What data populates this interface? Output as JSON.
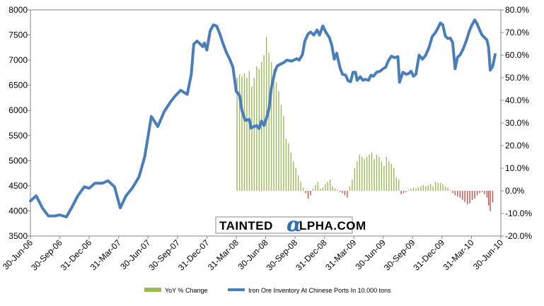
{
  "chart_data": {
    "type": "line",
    "title": "",
    "xlabel": "",
    "ylabel": "",
    "y_left_lim": [
      3500,
      8000
    ],
    "y_left_ticks": [
      "3500",
      "4000",
      "4500",
      "5000",
      "5500",
      "6000",
      "6500",
      "7000",
      "7500",
      "8000"
    ],
    "y_right_lim": [
      -20,
      80
    ],
    "y_right_ticks": [
      "-20.0%",
      "-10.0%",
      "0.0%",
      "10.0%",
      "20.0%",
      "30.0%",
      "40.0%",
      "50.0%",
      "60.0%",
      "70.0%",
      "80.0%"
    ],
    "x_tick_labels": [
      "30-Jun-06",
      "30-Sep-06",
      "31-Dec-06",
      "31-Mar-07",
      "30-Jun-07",
      "30-Sep-07",
      "31-Dec-07",
      "31-Mar-08",
      "30-Jun-08",
      "30-Sep-08",
      "31-Dec-08",
      "31-Mar-09",
      "30-Jun-09",
      "30-Sep-09",
      "31-Dec-09",
      "31-Mar-10",
      "30-Jun-10"
    ],
    "legend_position": "bottom",
    "grid": false,
    "watermark": {
      "prefix": "TAINTED",
      "alpha": "α",
      "suffix": "LPHA.COM"
    },
    "series": [
      {
        "name": "Iron Ore Inventory At Chinese Ports In 10.000 tons",
        "axis": "left",
        "style": "line",
        "color": "#4a7ebb",
        "points": [
          [
            0.0,
            4200
          ],
          [
            0.7,
            4300
          ],
          [
            1.5,
            4050
          ],
          [
            2.2,
            3900
          ],
          [
            3.0,
            3900
          ],
          [
            3.6,
            3920
          ],
          [
            4.4,
            3880
          ],
          [
            5.0,
            4050
          ],
          [
            5.8,
            4300
          ],
          [
            6.6,
            4480
          ],
          [
            7.2,
            4450
          ],
          [
            7.9,
            4550
          ],
          [
            8.8,
            4550
          ],
          [
            9.5,
            4600
          ],
          [
            10.3,
            4480
          ],
          [
            11.0,
            4060
          ],
          [
            11.7,
            4300
          ],
          [
            12.5,
            4460
          ],
          [
            13.3,
            4680
          ],
          [
            14.0,
            5080
          ],
          [
            14.8,
            5880
          ],
          [
            15.6,
            5680
          ],
          [
            16.4,
            5980
          ],
          [
            17.2,
            6180
          ],
          [
            17.8,
            6300
          ],
          [
            18.4,
            6400
          ],
          [
            19.2,
            6320
          ],
          [
            19.7,
            6720
          ],
          [
            20.0,
            7320
          ],
          [
            20.4,
            7380
          ],
          [
            20.8,
            7320
          ],
          [
            21.1,
            7270
          ],
          [
            21.3,
            7340
          ],
          [
            21.6,
            7200
          ],
          [
            22.0,
            7580
          ],
          [
            22.4,
            7700
          ],
          [
            22.8,
            7680
          ],
          [
            23.2,
            7520
          ],
          [
            23.6,
            7320
          ],
          [
            24.0,
            7150
          ],
          [
            24.4,
            7020
          ],
          [
            24.8,
            6860
          ],
          [
            25.2,
            6380
          ],
          [
            25.6,
            6300
          ],
          [
            25.9,
            6000
          ],
          [
            26.3,
            5800
          ],
          [
            26.8,
            5820
          ],
          [
            27.0,
            5650
          ],
          [
            27.4,
            5680
          ],
          [
            27.7,
            5700
          ],
          [
            28.0,
            5640
          ],
          [
            28.3,
            5790
          ],
          [
            28.6,
            5700
          ],
          [
            28.9,
            5850
          ],
          [
            29.2,
            6020
          ],
          [
            29.5,
            6450
          ],
          [
            29.9,
            6750
          ],
          [
            30.2,
            6880
          ],
          [
            30.6,
            6920
          ],
          [
            31.0,
            6950
          ],
          [
            31.4,
            7000
          ],
          [
            32.0,
            6980
          ],
          [
            32.6,
            7030
          ],
          [
            32.9,
            7000
          ],
          [
            33.3,
            7110
          ],
          [
            33.6,
            7380
          ],
          [
            34.0,
            7520
          ],
          [
            34.3,
            7560
          ],
          [
            34.7,
            7500
          ],
          [
            35.1,
            7600
          ],
          [
            35.4,
            7500
          ],
          [
            35.8,
            7680
          ],
          [
            36.2,
            7550
          ],
          [
            36.6,
            7450
          ],
          [
            36.9,
            7300
          ],
          [
            37.2,
            7020
          ],
          [
            37.5,
            7140
          ],
          [
            37.9,
            6850
          ],
          [
            38.2,
            6720
          ],
          [
            38.6,
            6700
          ],
          [
            38.9,
            6590
          ],
          [
            39.2,
            6570
          ],
          [
            39.5,
            6760
          ],
          [
            39.8,
            6760
          ],
          [
            40.0,
            6600
          ],
          [
            40.4,
            6670
          ],
          [
            40.7,
            6600
          ],
          [
            41.0,
            6620
          ],
          [
            41.4,
            6600
          ],
          [
            41.7,
            6700
          ],
          [
            42.0,
            6680
          ],
          [
            42.4,
            6760
          ],
          [
            42.8,
            6780
          ],
          [
            43.2,
            6830
          ],
          [
            43.5,
            6860
          ],
          [
            43.8,
            6980
          ],
          [
            44.2,
            7080
          ],
          [
            44.6,
            7050
          ],
          [
            45.0,
            7070
          ],
          [
            45.2,
            6560
          ],
          [
            45.6,
            6760
          ],
          [
            46.0,
            6720
          ],
          [
            46.3,
            6730
          ],
          [
            46.6,
            6780
          ],
          [
            46.9,
            6680
          ],
          [
            47.2,
            6720
          ],
          [
            47.6,
            7100
          ],
          [
            48.0,
            7020
          ],
          [
            48.4,
            7100
          ],
          [
            48.8,
            7250
          ],
          [
            49.2,
            7470
          ],
          [
            49.6,
            7550
          ],
          [
            49.9,
            7640
          ],
          [
            50.2,
            7740
          ],
          [
            50.5,
            7700
          ],
          [
            50.8,
            7480
          ],
          [
            51.1,
            7430
          ],
          [
            51.4,
            7440
          ],
          [
            51.7,
            7350
          ],
          [
            52.0,
            6830
          ],
          [
            52.3,
            7060
          ],
          [
            52.6,
            7100
          ],
          [
            53.0,
            7230
          ],
          [
            53.4,
            7400
          ],
          [
            53.7,
            7560
          ],
          [
            54.0,
            7680
          ],
          [
            54.4,
            7800
          ],
          [
            54.7,
            7720
          ],
          [
            55.0,
            7600
          ],
          [
            55.3,
            7500
          ],
          [
            55.6,
            7450
          ],
          [
            55.9,
            7400
          ],
          [
            56.1,
            7250
          ],
          [
            56.3,
            6800
          ],
          [
            56.6,
            6880
          ],
          [
            56.9,
            7110
          ]
        ]
      },
      {
        "name": "YoY % Change",
        "axis": "right",
        "style": "bar",
        "color": "#9bbb59",
        "negative_color": "#c0504d",
        "points": [
          [
            25.3,
            50.0
          ],
          [
            25.6,
            51.5
          ],
          [
            25.9,
            50.5
          ],
          [
            26.2,
            52.0
          ],
          [
            26.5,
            50.0
          ],
          [
            26.8,
            53.0
          ],
          [
            27.1,
            46.0
          ],
          [
            27.4,
            50.0
          ],
          [
            27.7,
            55.0
          ],
          [
            28.0,
            54.0
          ],
          [
            28.3,
            57.0
          ],
          [
            28.6,
            60.0
          ],
          [
            28.9,
            68.0
          ],
          [
            29.2,
            61.0
          ],
          [
            29.5,
            57.0
          ],
          [
            29.8,
            54.0
          ],
          [
            30.1,
            48.0
          ],
          [
            30.4,
            44.0
          ],
          [
            30.7,
            38.0
          ],
          [
            31.0,
            33.0
          ],
          [
            31.3,
            23.0
          ],
          [
            31.6,
            21.0
          ],
          [
            31.9,
            17.0
          ],
          [
            32.2,
            13.0
          ],
          [
            32.5,
            10.0
          ],
          [
            32.8,
            7.0
          ],
          [
            33.1,
            4.0
          ],
          [
            33.4,
            1.5
          ],
          [
            33.7,
            -1.0
          ],
          [
            34.0,
            -3.5
          ],
          [
            34.3,
            -2.0
          ],
          [
            34.6,
            1.0
          ],
          [
            34.9,
            2.5
          ],
          [
            35.2,
            4.0
          ],
          [
            35.5,
            1.0
          ],
          [
            35.8,
            1.5
          ],
          [
            36.1,
            3.0
          ],
          [
            36.4,
            4.0
          ],
          [
            36.7,
            5.0
          ],
          [
            37.0,
            2.0
          ],
          [
            37.3,
            1.0
          ],
          [
            37.6,
            0.5
          ],
          [
            37.9,
            -0.5
          ],
          [
            38.2,
            -1.0
          ],
          [
            38.5,
            -2.0
          ],
          [
            38.8,
            -3.0
          ],
          [
            39.1,
            2.0
          ],
          [
            39.4,
            5.0
          ],
          [
            39.7,
            10.0
          ],
          [
            40.0,
            13.0
          ],
          [
            40.3,
            16.0
          ],
          [
            40.6,
            15.0
          ],
          [
            40.9,
            14.0
          ],
          [
            41.2,
            15.0
          ],
          [
            41.5,
            16.0
          ],
          [
            41.8,
            17.0
          ],
          [
            42.1,
            14.0
          ],
          [
            42.4,
            16.0
          ],
          [
            42.7,
            15.0
          ],
          [
            43.0,
            13.0
          ],
          [
            43.3,
            11.0
          ],
          [
            43.6,
            15.0
          ],
          [
            43.9,
            13.0
          ],
          [
            44.2,
            12.0
          ],
          [
            44.5,
            10.0
          ],
          [
            44.8,
            6.0
          ],
          [
            45.1,
            5.0
          ],
          [
            45.4,
            -1.5
          ],
          [
            45.7,
            -1.0
          ],
          [
            46.0,
            -0.5
          ],
          [
            46.3,
            0.5
          ],
          [
            46.6,
            1.0
          ],
          [
            46.9,
            1.5
          ],
          [
            47.2,
            1.0
          ],
          [
            47.5,
            1.5
          ],
          [
            47.8,
            2.0
          ],
          [
            48.1,
            2.5
          ],
          [
            48.4,
            2.0
          ],
          [
            48.7,
            2.5
          ],
          [
            49.0,
            3.0
          ],
          [
            49.3,
            2.0
          ],
          [
            49.6,
            4.0
          ],
          [
            49.9,
            3.5
          ],
          [
            50.2,
            3.5
          ],
          [
            50.5,
            3.0
          ],
          [
            50.8,
            2.0
          ],
          [
            51.1,
            1.5
          ],
          [
            51.4,
            0.5
          ],
          [
            51.7,
            -1.0
          ],
          [
            52.0,
            -2.0
          ],
          [
            52.3,
            -2.5
          ],
          [
            52.6,
            -3.0
          ],
          [
            52.9,
            -4.0
          ],
          [
            53.2,
            -5.0
          ],
          [
            53.5,
            -6.0
          ],
          [
            53.8,
            -5.5
          ],
          [
            54.1,
            -4.0
          ],
          [
            54.4,
            -3.5
          ],
          [
            54.7,
            -2.0
          ],
          [
            55.0,
            -1.0
          ],
          [
            55.3,
            -0.5
          ],
          [
            55.6,
            -1.5
          ],
          [
            55.9,
            -3.0
          ],
          [
            56.1,
            -6.5
          ],
          [
            56.3,
            -9.0
          ],
          [
            56.6,
            -5.0
          ]
        ]
      }
    ]
  }
}
